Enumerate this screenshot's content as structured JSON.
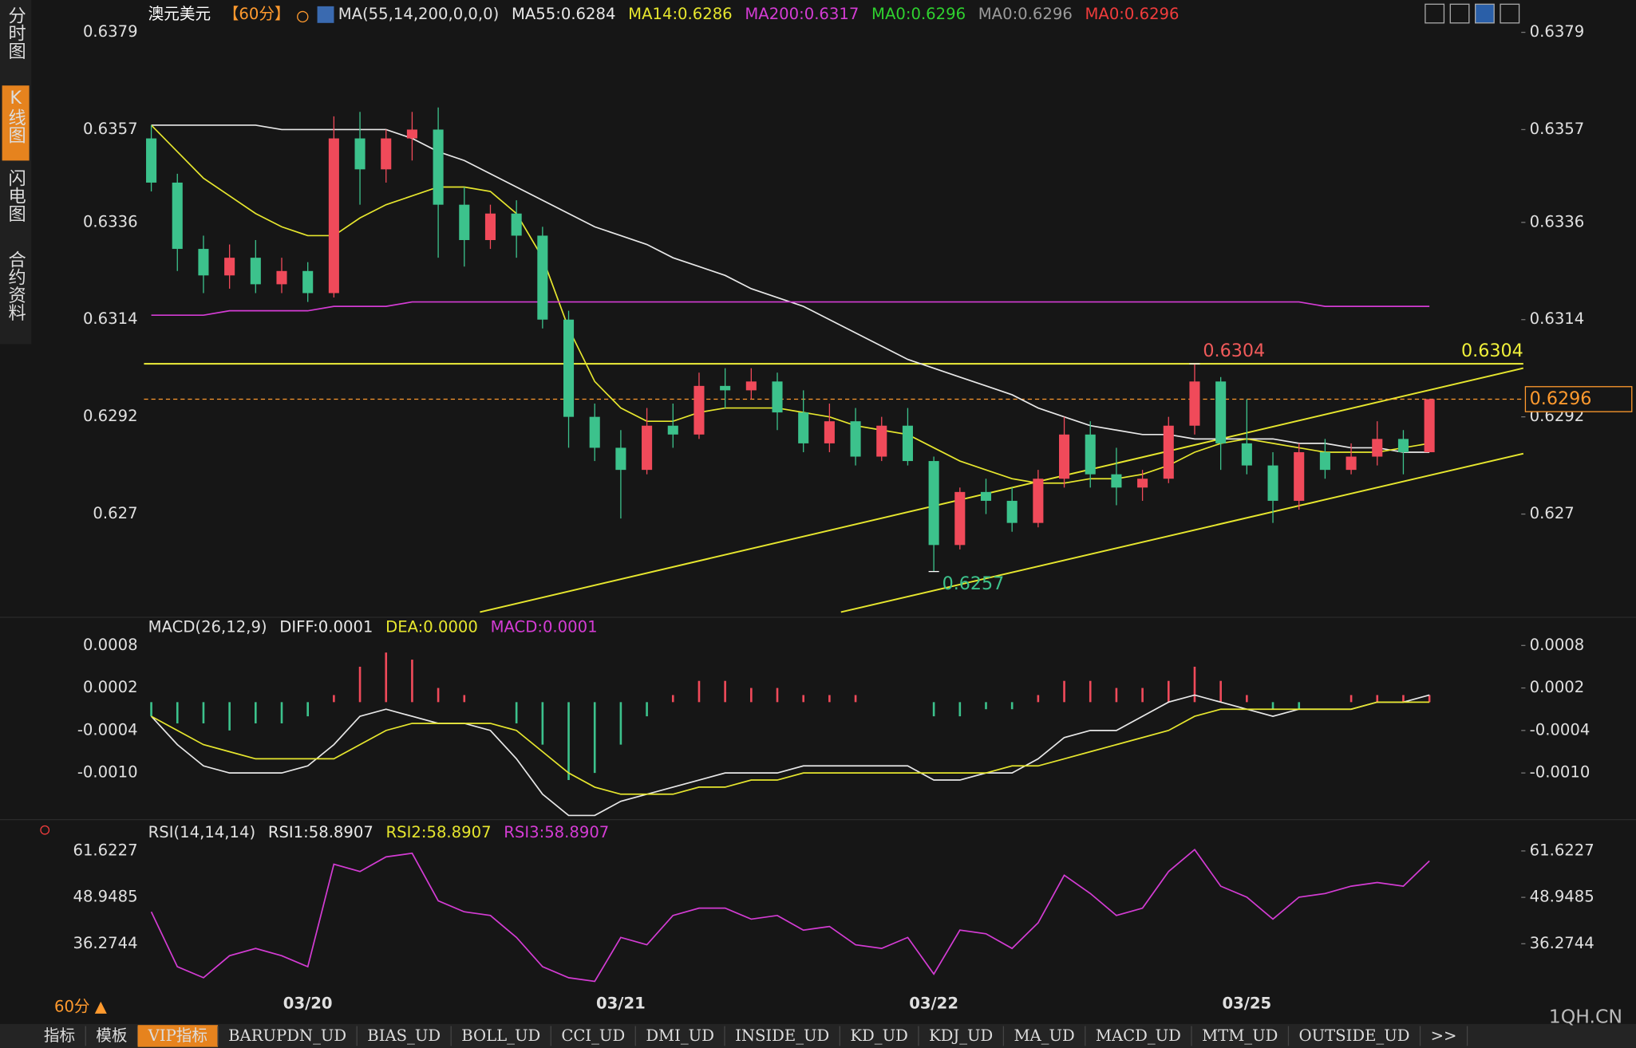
{
  "chart_data": [
    {
      "type": "candlestick",
      "title": "澳元美元",
      "period": "【60分】",
      "indicator": "MA(55,14,200,0,0,0)",
      "categories": [
        null,
        null,
        null,
        null,
        null,
        null,
        "03/20",
        null,
        null,
        null,
        null,
        null,
        null,
        null,
        null,
        null,
        null,
        null,
        "03/21",
        null,
        null,
        null,
        null,
        null,
        null,
        null,
        null,
        null,
        null,
        null,
        "03/22",
        null,
        null,
        null,
        null,
        null,
        null,
        null,
        null,
        null,
        null,
        null,
        "03/25",
        null,
        null,
        null,
        null,
        null,
        null,
        null
      ],
      "open": [
        0.6355,
        0.6345,
        0.633,
        0.6324,
        0.6328,
        0.6322,
        0.6325,
        0.632,
        0.6355,
        0.6348,
        0.6355,
        0.6357,
        0.634,
        0.6332,
        0.6338,
        0.6333,
        0.6314,
        0.6292,
        0.6285,
        0.628,
        0.629,
        0.6288,
        0.6299,
        0.6298,
        0.63,
        0.6293,
        0.6286,
        0.6291,
        0.6283,
        0.629,
        0.6282,
        0.6263,
        0.6275,
        0.6273,
        0.6268,
        0.6278,
        0.6288,
        0.6279,
        0.6276,
        0.6278,
        0.629,
        0.63,
        0.6286,
        0.6281,
        0.6273,
        0.6284,
        0.628,
        0.6283,
        0.6287,
        0.6284
      ],
      "high": [
        0.6358,
        0.6347,
        0.6333,
        0.6331,
        0.6332,
        0.6328,
        0.6327,
        0.636,
        0.6361,
        0.6357,
        0.6361,
        0.6362,
        0.6344,
        0.634,
        0.6341,
        0.6335,
        0.6316,
        0.6295,
        0.6289,
        0.6294,
        0.6295,
        0.6302,
        0.6303,
        0.6303,
        0.6302,
        0.6298,
        0.6295,
        0.6294,
        0.6292,
        0.6294,
        0.6283,
        0.6276,
        0.6278,
        0.6276,
        0.628,
        0.6292,
        0.6291,
        0.6285,
        0.628,
        0.6292,
        0.6304,
        0.6301,
        0.6296,
        0.6284,
        0.6286,
        0.6287,
        0.6286,
        0.6291,
        0.6289,
        0.6296
      ],
      "low": [
        0.6343,
        0.6325,
        0.632,
        0.6321,
        0.632,
        0.632,
        0.6318,
        0.6319,
        0.634,
        0.6345,
        0.635,
        0.6328,
        0.6326,
        0.633,
        0.6328,
        0.6312,
        0.6285,
        0.6282,
        0.6269,
        0.6279,
        0.6285,
        0.6287,
        0.6294,
        0.6296,
        0.6289,
        0.6284,
        0.6284,
        0.6281,
        0.6282,
        0.6281,
        0.6257,
        0.6262,
        0.627,
        0.6266,
        0.6267,
        0.6276,
        0.6276,
        0.6272,
        0.6273,
        0.6277,
        0.6288,
        0.628,
        0.6279,
        0.6268,
        0.6271,
        0.6278,
        0.6279,
        0.6281,
        0.6279,
        0.6284
      ],
      "close": [
        0.6345,
        0.633,
        0.6324,
        0.6328,
        0.6322,
        0.6325,
        0.632,
        0.6355,
        0.6348,
        0.6355,
        0.6357,
        0.634,
        0.6332,
        0.6338,
        0.6333,
        0.6314,
        0.6292,
        0.6285,
        0.628,
        0.629,
        0.6288,
        0.6299,
        0.6298,
        0.63,
        0.6293,
        0.6286,
        0.6291,
        0.6283,
        0.629,
        0.6282,
        0.6263,
        0.6275,
        0.6273,
        0.6268,
        0.6278,
        0.6288,
        0.6279,
        0.6276,
        0.6278,
        0.629,
        0.63,
        0.6286,
        0.6281,
        0.6273,
        0.6284,
        0.628,
        0.6283,
        0.6287,
        0.6284,
        0.6296
      ],
      "up_color": "#f04a5a",
      "down_color": "#3cc28c",
      "ylim": [
        0.6246,
        0.6384
      ],
      "yticks": [
        0.6379,
        0.6357,
        0.6336,
        0.6314,
        0.6292,
        0.627
      ],
      "series": [
        {
          "name": "MA55:0.6284",
          "color": "#e8e8e8",
          "values": [
            0.6358,
            0.6358,
            0.6358,
            0.6358,
            0.6358,
            0.6357,
            0.6357,
            0.6357,
            0.6357,
            0.6357,
            0.6355,
            0.6352,
            0.635,
            0.6347,
            0.6344,
            0.6341,
            0.6338,
            0.6335,
            0.6333,
            0.6331,
            0.6328,
            0.6326,
            0.6324,
            0.6321,
            0.6319,
            0.6317,
            0.6314,
            0.6311,
            0.6308,
            0.6305,
            0.6303,
            0.6301,
            0.6299,
            0.6297,
            0.6294,
            0.6292,
            0.629,
            0.6289,
            0.6288,
            0.6288,
            0.6287,
            0.6287,
            0.6287,
            0.6287,
            0.6286,
            0.6286,
            0.6285,
            0.6285,
            0.6284,
            0.6284
          ]
        },
        {
          "name": "MA14:0.6286",
          "color": "#e6e62e",
          "values": [
            0.6358,
            0.6352,
            0.6346,
            0.6342,
            0.6338,
            0.6335,
            0.6333,
            0.6333,
            0.6337,
            0.634,
            0.6342,
            0.6344,
            0.6344,
            0.6343,
            0.6338,
            0.6328,
            0.6312,
            0.63,
            0.6294,
            0.6291,
            0.6291,
            0.6293,
            0.6294,
            0.6294,
            0.6294,
            0.6293,
            0.6292,
            0.629,
            0.6289,
            0.6288,
            0.6285,
            0.6282,
            0.628,
            0.6278,
            0.6277,
            0.6277,
            0.6278,
            0.6278,
            0.6279,
            0.6281,
            0.6284,
            0.6286,
            0.6287,
            0.6286,
            0.6285,
            0.6284,
            0.6284,
            0.6284,
            0.6285,
            0.6286
          ]
        },
        {
          "name": "MA200:0.6317",
          "color": "#d43cd4",
          "values": [
            0.6315,
            0.6315,
            0.6315,
            0.6316,
            0.6316,
            0.6316,
            0.6316,
            0.6317,
            0.6317,
            0.6317,
            0.6318,
            0.6318,
            0.6318,
            0.6318,
            0.6318,
            0.6318,
            0.6318,
            0.6318,
            0.6318,
            0.6318,
            0.6318,
            0.6318,
            0.6318,
            0.6318,
            0.6318,
            0.6318,
            0.6318,
            0.6318,
            0.6318,
            0.6318,
            0.6318,
            0.6318,
            0.6318,
            0.6318,
            0.6318,
            0.6318,
            0.6318,
            0.6318,
            0.6318,
            0.6318,
            0.6318,
            0.6318,
            0.6318,
            0.6318,
            0.6318,
            0.6317,
            0.6317,
            0.6317,
            0.6317,
            0.6317
          ]
        }
      ],
      "extra_legend": [
        {
          "text": "MA0:0.6296",
          "color": "#2fd12f"
        },
        {
          "text": "MA0:0.6296",
          "color": "#9a9a9a"
        },
        {
          "text": "MA0:0.6296",
          "color": "#f03c3c"
        }
      ],
      "high_mark": {
        "value": 0.6304,
        "index": 40,
        "color": "#f05a5a"
      },
      "low_mark": {
        "value": 0.6257,
        "index": 30,
        "color": "#3cc28c"
      },
      "hline": {
        "value": 0.6304,
        "color": "#f0f03a"
      },
      "last_price": {
        "value": 0.6296,
        "color": "#ff9a2e"
      }
    },
    {
      "type": "macd",
      "title": "MACD(26,12,9)",
      "legend": [
        {
          "text": "DIFF:0.0001",
          "color": "#e8e8e8"
        },
        {
          "text": "DEA:0.0000",
          "color": "#e6e62e"
        },
        {
          "text": "MACD:0.0001",
          "color": "#d43cd4"
        }
      ],
      "ylim": [
        -0.0017,
        0.0009
      ],
      "yticks": [
        0.0008,
        0.0002,
        -0.0004,
        {
          "value": -0.001,
          "label": "-0.0010"
        }
      ],
      "up_color": "#f04a5a",
      "down_color": "#3cc28c",
      "histogram": [
        -0.0002,
        -0.0003,
        -0.0003,
        -0.0004,
        -0.0003,
        -0.0003,
        -0.0002,
        0.0001,
        0.0005,
        0.0007,
        0.0006,
        0.0002,
        0.0001,
        0,
        -0.0003,
        -0.0006,
        -0.0011,
        -0.001,
        -0.0006,
        -0.0002,
        0.0001,
        0.0003,
        0.0003,
        0.0002,
        0.0002,
        0.0001,
        0.0001,
        0.0001,
        0,
        0,
        -0.0002,
        -0.0002,
        -0.0001,
        -0.0001,
        0.0001,
        0.0003,
        0.0003,
        0.0002,
        0.0002,
        0.0003,
        0.0005,
        0.0003,
        0.0001,
        -0.0001,
        -0.0001,
        0,
        0.0001,
        0.0001,
        0.0001,
        0.0001
      ],
      "series": [
        {
          "color": "#e8e8e8",
          "values": [
            -0.0002,
            -0.0006,
            -0.0009,
            -0.001,
            -0.001,
            -0.001,
            -0.0009,
            -0.0006,
            -0.0002,
            -0.0001,
            -0.0002,
            -0.0003,
            -0.0003,
            -0.0004,
            -0.0008,
            -0.0013,
            -0.0016,
            -0.0016,
            -0.0014,
            -0.0013,
            -0.0012,
            -0.0011,
            -0.001,
            -0.001,
            -0.001,
            -0.0009,
            -0.0009,
            -0.0009,
            -0.0009,
            -0.0009,
            -0.0011,
            -0.0011,
            -0.001,
            -0.001,
            -0.0008,
            -0.0005,
            -0.0004,
            -0.0004,
            -0.0002,
            0,
            0.0001,
            0,
            -0.0001,
            -0.0002,
            -0.0001,
            -0.0001,
            -0.0001,
            0,
            0,
            0.0001
          ]
        },
        {
          "color": "#e6e62e",
          "values": [
            -0.0002,
            -0.0004,
            -0.0006,
            -0.0007,
            -0.0008,
            -0.0008,
            -0.0008,
            -0.0008,
            -0.0006,
            -0.0004,
            -0.0003,
            -0.0003,
            -0.0003,
            -0.0003,
            -0.0004,
            -0.0007,
            -0.001,
            -0.0012,
            -0.0013,
            -0.0013,
            -0.0013,
            -0.0012,
            -0.0012,
            -0.0011,
            -0.0011,
            -0.001,
            -0.001,
            -0.001,
            -0.001,
            -0.001,
            -0.001,
            -0.001,
            -0.001,
            -0.0009,
            -0.0009,
            -0.0008,
            -0.0007,
            -0.0006,
            -0.0005,
            -0.0004,
            -0.0002,
            -0.0001,
            -0.0001,
            -0.0001,
            -0.0001,
            -0.0001,
            -0.0001,
            0,
            0,
            0
          ]
        }
      ]
    },
    {
      "type": "line",
      "title": "RSI(14,14,14)",
      "legend": [
        {
          "text": "RSI1:58.8907",
          "color": "#e8e8e8"
        },
        {
          "text": "RSI2:58.8907",
          "color": "#e6e62e"
        },
        {
          "text": "RSI3:58.8907",
          "color": "#d43cd4"
        }
      ],
      "ylim": [
        23.5,
        64
      ],
      "yticks": [
        61.6227,
        48.9485,
        36.2744
      ],
      "series": [
        {
          "color": "#d43cd4",
          "values": [
            45,
            30,
            27,
            33,
            35,
            33,
            30,
            58,
            56,
            60,
            61,
            48,
            45,
            44,
            38,
            30,
            27,
            26,
            38,
            36,
            44,
            46,
            46,
            43,
            44,
            40,
            41,
            36,
            35,
            38,
            28,
            40,
            39,
            35,
            42,
            55,
            50,
            44,
            46,
            56,
            62,
            52,
            49,
            43,
            49,
            50,
            52,
            53,
            52,
            58.8907
          ]
        }
      ]
    }
  ],
  "ui": {
    "side_tabs": [
      "分时图",
      "K线图",
      "闪电图",
      "合约资料"
    ],
    "active_side": 1,
    "period_button": "60分 ▲",
    "bottom_tabs": [
      "指标",
      "模板",
      "VIP指标",
      "BARUPDN_UD",
      "BIAS_UD",
      "BOLL_UD",
      "CCI_UD",
      "DMI_UD",
      "INSIDE_UD",
      "KD_UD",
      "KDJ_UD",
      "MA_UD",
      "MACD_UD",
      "MTM_UD",
      "OUTSIDE_UD",
      ">>"
    ],
    "active_bottom": 2,
    "watermark": "1QH.CN"
  }
}
